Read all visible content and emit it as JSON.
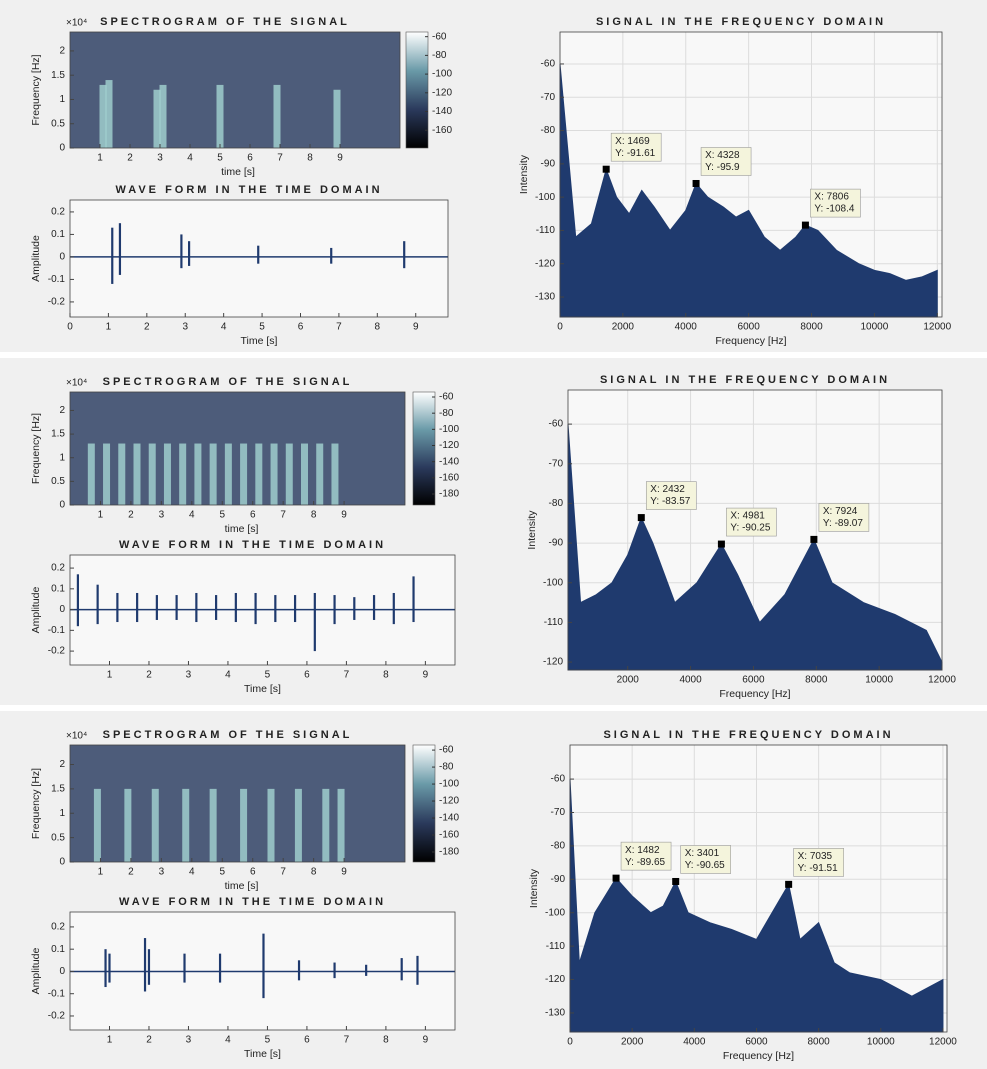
{
  "chart_data": [
    {
      "type": "spectrogram",
      "title": "SPECTROGRAM OF THE SIGNAL",
      "xlabel": "time [s]",
      "ylabel": "Frequency [Hz]",
      "yexp": "×10⁴",
      "x": [
        1.1,
        1.3,
        2.9,
        3.1,
        5.0,
        6.9,
        8.9
      ],
      "values": [
        1.3,
        1.4,
        1.2,
        1.3,
        1.3,
        1.3,
        1.2
      ],
      "xlim": [
        0,
        11
      ],
      "xticks": [
        1,
        2,
        3,
        4,
        5,
        6,
        7,
        8,
        9
      ],
      "ylim": [
        0,
        2.39
      ],
      "yticks": [
        0,
        0.5,
        1,
        1.5,
        2
      ],
      "clim": [
        -179,
        -55
      ],
      "cticks": [
        -60,
        -80,
        -100,
        -120,
        -140,
        -160
      ],
      "colormap": [
        "#000000",
        "#2b3a5c",
        "#6a9aa8",
        "#ffffff"
      ],
      "color": "#a9dcd8",
      "background": "#4d5c7a"
    },
    {
      "type": "waveform",
      "title": "WAVE FORM IN THE TIME DOMAIN",
      "xlabel": "Time [s]",
      "ylabel": "Amplitude",
      "x": [
        1.1,
        1.3,
        2.9,
        3.1,
        4.9,
        6.8,
        8.7
      ],
      "values": [
        0.13,
        0.15,
        0.1,
        0.07,
        0.05,
        0.04,
        0.07
      ],
      "lows": [
        -0.12,
        -0.08,
        -0.05,
        -0.04,
        -0.03,
        -0.03,
        -0.05
      ],
      "xlim": [
        0,
        9.84
      ],
      "xticks": [
        0,
        1,
        2,
        3,
        4,
        5,
        6,
        7,
        8,
        9
      ],
      "ylim": [
        -0.267,
        0.253
      ],
      "yticks": [
        -0.2,
        -0.1,
        0,
        0.1,
        0.2
      ],
      "color": "#1f3a6e"
    },
    {
      "type": "area",
      "title": "SIGNAL IN THE FREQUENCY DOMAIN",
      "xlabel": "Frequency [Hz]",
      "ylabel": "Intensity",
      "x": [
        0,
        500,
        1000,
        1469,
        1800,
        2200,
        2600,
        3000,
        3500,
        4000,
        4328,
        4700,
        5200,
        5600,
        6000,
        6500,
        7000,
        7500,
        7806,
        8200,
        8800,
        9500,
        10000,
        10500,
        11000,
        11500,
        12000
      ],
      "values": [
        -60,
        -112,
        -108,
        -91.61,
        -100,
        -105,
        -98,
        -103,
        -110,
        -104,
        -95.9,
        -100,
        -103,
        -106,
        -104,
        -112,
        -116,
        -112,
        -108.4,
        -110,
        -116,
        -120,
        -122,
        -123,
        -125,
        -124,
        -122
      ],
      "annotations": [
        {
          "x": 1469,
          "y": -91.61,
          "x_label": "X: 1469",
          "y_label": "Y: -91.61"
        },
        {
          "x": 4328,
          "y": -95.9,
          "x_label": "X: 4328",
          "y_label": "Y: -95.9"
        },
        {
          "x": 7806,
          "y": -108.4,
          "x_label": "X: 7806",
          "y_label": "Y: -108.4"
        }
      ],
      "xlim": [
        0,
        12150
      ],
      "xticks": [
        0,
        2000,
        4000,
        6000,
        8000,
        10000,
        12000
      ],
      "ylim": [
        -136,
        -50.4
      ],
      "yticks": [
        -130,
        -120,
        -110,
        -100,
        -90,
        -80,
        -70,
        -60
      ],
      "grid": true,
      "color": "#1f3a6e"
    },
    {
      "type": "spectrogram",
      "title": "SPECTROGRAM OF THE SIGNAL",
      "xlabel": "time [s]",
      "ylabel": "Frequency [Hz]",
      "yexp": "×10⁴",
      "x": [
        0.7,
        1.2,
        1.7,
        2.2,
        2.7,
        3.2,
        3.7,
        4.2,
        4.7,
        5.2,
        5.7,
        6.2,
        6.7,
        7.2,
        7.7,
        8.2,
        8.7
      ],
      "values": [
        1.3,
        1.3,
        1.3,
        1.3,
        1.3,
        1.3,
        1.3,
        1.3,
        1.3,
        1.3,
        1.3,
        1.3,
        1.3,
        1.3,
        1.3,
        1.3,
        1.3
      ],
      "xlim": [
        0,
        11
      ],
      "xticks": [
        1,
        2,
        3,
        4,
        5,
        6,
        7,
        8,
        9
      ],
      "ylim": [
        0,
        2.39
      ],
      "yticks": [
        0,
        0.5,
        1,
        1.5,
        2
      ],
      "clim": [
        -193.6,
        -53.8
      ],
      "cticks": [
        -60,
        -80,
        -100,
        -120,
        -140,
        -160,
        -180
      ],
      "colormap": [
        "#000000",
        "#2b3a5c",
        "#6a9aa8",
        "#ffffff"
      ],
      "color": "#a9dcd8",
      "background": "#4d5c7a"
    },
    {
      "type": "waveform",
      "title": "WAVE FORM IN THE TIME DOMAIN",
      "xlabel": "Time [s]",
      "ylabel": "Amplitude",
      "x": [
        0.2,
        0.7,
        1.2,
        1.7,
        2.2,
        2.7,
        3.2,
        3.7,
        4.2,
        4.7,
        5.2,
        5.7,
        6.2,
        6.7,
        7.2,
        7.7,
        8.2,
        8.7
      ],
      "values": [
        0.17,
        0.12,
        0.08,
        0.08,
        0.07,
        0.07,
        0.08,
        0.07,
        0.08,
        0.08,
        0.07,
        0.07,
        0.08,
        0.07,
        0.06,
        0.07,
        0.08,
        0.16
      ],
      "lows": [
        -0.08,
        -0.07,
        -0.06,
        -0.06,
        -0.05,
        -0.05,
        -0.06,
        -0.05,
        -0.06,
        -0.07,
        -0.06,
        -0.06,
        -0.2,
        -0.07,
        -0.05,
        -0.05,
        -0.07,
        -0.06
      ],
      "xlim": [
        0,
        9.75
      ],
      "xticks": [
        1,
        2,
        3,
        4,
        5,
        6,
        7,
        8,
        9
      ],
      "ylim": [
        -0.267,
        0.263
      ],
      "yticks": [
        -0.2,
        -0.1,
        0,
        0.1,
        0.2
      ],
      "color": "#1f3a6e"
    },
    {
      "type": "area",
      "title": "SIGNAL IN THE FREQUENCY DOMAIN",
      "xlabel": "Frequency [Hz]",
      "ylabel": "Intensity",
      "x": [
        100,
        500,
        1000,
        1500,
        2000,
        2432,
        2800,
        3500,
        4200,
        4981,
        5500,
        6200,
        7000,
        7924,
        8500,
        9500,
        10500,
        11500,
        12000
      ],
      "values": [
        -60,
        -105,
        -103,
        -100,
        -93,
        -83.57,
        -90,
        -105,
        -100,
        -90.25,
        -98,
        -110,
        -103,
        -89.07,
        -100,
        -105,
        -108,
        -112,
        -120
      ],
      "annotations": [
        {
          "x": 2432,
          "y": -83.57,
          "x_label": "X: 2432",
          "y_label": "Y: -83.57"
        },
        {
          "x": 4981,
          "y": -90.25,
          "x_label": "X: 4981",
          "y_label": "Y: -90.25"
        },
        {
          "x": 7924,
          "y": -89.07,
          "x_label": "X: 7924",
          "y_label": "Y: -89.07"
        }
      ],
      "xlim": [
        100,
        12000
      ],
      "xticks": [
        2000,
        4000,
        6000,
        8000,
        10000,
        12000
      ],
      "ylim": [
        -122,
        -51.4
      ],
      "yticks": [
        -120,
        -110,
        -100,
        -90,
        -80,
        -70,
        -60
      ],
      "grid": true,
      "color": "#1f3a6e"
    },
    {
      "type": "spectrogram",
      "title": "SPECTROGRAM OF THE SIGNAL",
      "xlabel": "time [s]",
      "ylabel": "Frequency [Hz]",
      "yexp": "×10⁴",
      "x": [
        0.9,
        1.9,
        2.8,
        3.8,
        4.7,
        5.7,
        6.6,
        7.5,
        8.4,
        8.9
      ],
      "values": [
        1.5,
        1.5,
        1.5,
        1.5,
        1.5,
        1.5,
        1.5,
        1.5,
        1.5,
        1.5
      ],
      "xlim": [
        0,
        11
      ],
      "xticks": [
        1,
        2,
        3,
        4,
        5,
        6,
        7,
        8,
        9
      ],
      "ylim": [
        0,
        2.4
      ],
      "yticks": [
        0,
        0.5,
        1,
        1.5,
        2
      ],
      "clim": [
        -191.8,
        -54
      ],
      "cticks": [
        -60,
        -80,
        -100,
        -120,
        -140,
        -160,
        -180
      ],
      "colormap": [
        "#000000",
        "#2b3a5c",
        "#6a9aa8",
        "#ffffff"
      ],
      "color": "#a9dcd8",
      "background": "#4d5c7a"
    },
    {
      "type": "waveform",
      "title": "WAVE FORM IN THE TIME DOMAIN",
      "xlabel": "Time [s]",
      "ylabel": "Amplitude",
      "x": [
        0.9,
        1.0,
        1.9,
        2.0,
        2.9,
        3.8,
        4.9,
        5.8,
        6.7,
        7.5,
        8.4,
        8.8
      ],
      "values": [
        0.1,
        0.08,
        0.15,
        0.1,
        0.08,
        0.08,
        0.17,
        0.05,
        0.04,
        0.03,
        0.06,
        0.07
      ],
      "lows": [
        -0.07,
        -0.05,
        -0.09,
        -0.06,
        -0.05,
        -0.05,
        -0.12,
        -0.04,
        -0.03,
        -0.02,
        -0.04,
        -0.06
      ],
      "xlim": [
        0,
        9.75
      ],
      "xticks": [
        1,
        2,
        3,
        4,
        5,
        6,
        7,
        8,
        9
      ],
      "ylim": [
        -0.263,
        0.267
      ],
      "yticks": [
        -0.2,
        -0.1,
        0,
        0.1,
        0.2
      ],
      "color": "#1f3a6e"
    },
    {
      "type": "area",
      "title": "SIGNAL IN THE FREQUENCY DOMAIN",
      "xlabel": "Frequency [Hz]",
      "ylabel": "Intensity",
      "x": [
        0,
        300,
        800,
        1482,
        2000,
        2600,
        3000,
        3401,
        3800,
        4500,
        5200,
        6000,
        6500,
        7035,
        7400,
        8000,
        8500,
        9000,
        10000,
        11000,
        12000
      ],
      "values": [
        -60,
        -115,
        -100,
        -89.65,
        -95,
        -100,
        -98,
        -90.65,
        -100,
        -103,
        -105,
        -108,
        -100,
        -91.51,
        -108,
        -103,
        -115,
        -118,
        -120,
        -125,
        -120
      ],
      "annotations": [
        {
          "x": 1482,
          "y": -89.65,
          "x_label": "X: 1482",
          "y_label": "Y: -89.65"
        },
        {
          "x": 3401,
          "y": -90.65,
          "x_label": "X: 3401",
          "y_label": "Y: -90.65"
        },
        {
          "x": 7035,
          "y": -91.51,
          "x_label": "X: 7035",
          "y_label": "Y: -91.51"
        }
      ],
      "xlim": [
        0,
        12130
      ],
      "xticks": [
        0,
        2000,
        4000,
        6000,
        8000,
        10000,
        12000
      ],
      "ylim": [
        -135.7,
        -49.8
      ],
      "yticks": [
        -130,
        -120,
        -110,
        -100,
        -90,
        -80,
        -70,
        -60
      ],
      "grid": true,
      "color": "#1f3a6e"
    }
  ]
}
